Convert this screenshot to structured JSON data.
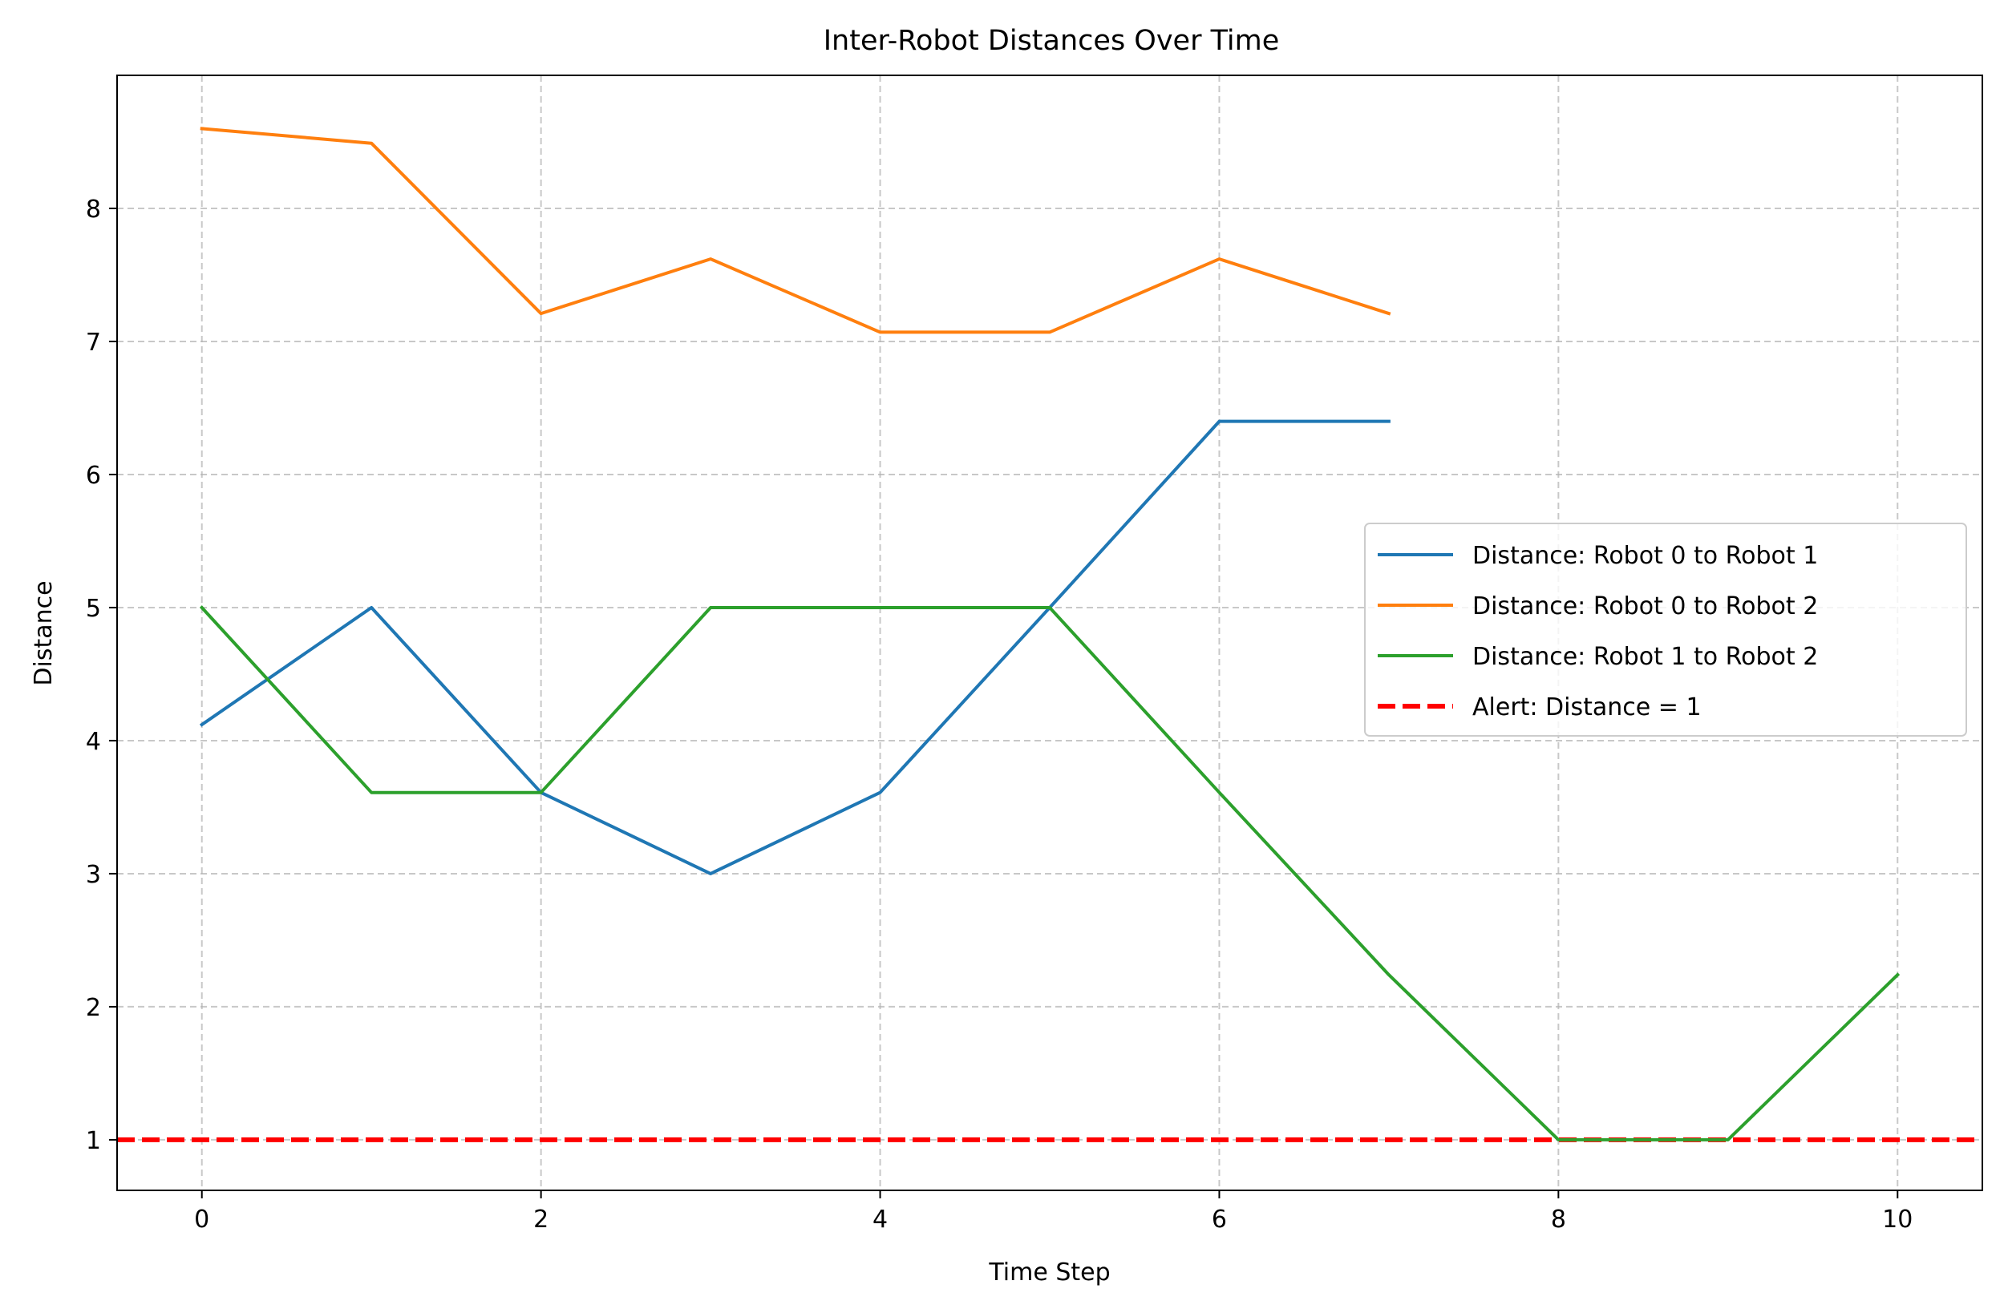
{
  "chart_data": {
    "type": "line",
    "title": "Inter-Robot Distances Over Time",
    "xlabel": "Time Step",
    "ylabel": "Distance",
    "xlim": [
      -0.5,
      10.5
    ],
    "ylim": [
      0.62,
      9.0
    ],
    "xticks": [
      0,
      2,
      4,
      6,
      8,
      10
    ],
    "yticks": [
      1,
      2,
      3,
      4,
      5,
      6,
      7,
      8
    ],
    "grid": true,
    "legend_position": "center-right",
    "series": [
      {
        "name": "Distance: Robot 0 to Robot 1",
        "color": "#1f77b4",
        "style": "solid",
        "x": [
          0,
          1,
          2,
          3,
          4,
          5,
          6,
          7
        ],
        "values": [
          4.12,
          5.0,
          3.61,
          3.0,
          3.61,
          5.0,
          6.4,
          6.4
        ]
      },
      {
        "name": "Distance: Robot 0 to Robot 2",
        "color": "#ff7f0e",
        "style": "solid",
        "x": [
          0,
          1,
          2,
          3,
          4,
          5,
          6,
          7
        ],
        "values": [
          8.6,
          8.49,
          7.21,
          7.62,
          7.07,
          7.07,
          7.62,
          7.21
        ]
      },
      {
        "name": "Distance: Robot 1 to Robot 2",
        "color": "#2ca02c",
        "style": "solid",
        "x": [
          0,
          1,
          2,
          3,
          4,
          5,
          6,
          7,
          8,
          9,
          10
        ],
        "values": [
          5.0,
          3.61,
          3.61,
          5.0,
          5.0,
          5.0,
          3.61,
          2.24,
          1.0,
          1.0,
          2.24
        ]
      }
    ],
    "reference_lines": [
      {
        "name": "Alert: Distance = 1",
        "color": "#ff0000",
        "style": "dashed",
        "y": 1
      }
    ]
  }
}
